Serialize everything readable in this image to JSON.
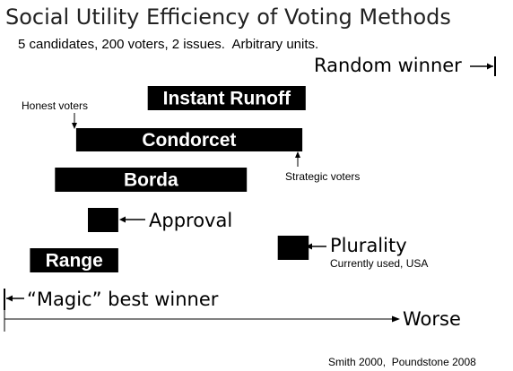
{
  "chart_data": {
    "type": "bar",
    "title": "Social Utility Efficiency of Voting Methods",
    "subtitle": "5 candidates, 200 voters, 2 issues.  Arbitrary units.",
    "xlim": [
      0,
      100
    ],
    "axis_end_label": "Worse",
    "reference_points": {
      "best": {
        "label": "“Magic” best winner",
        "value": 0
      },
      "random": {
        "label": "Random winner",
        "value": 100
      }
    },
    "series_labels": {
      "honest": "Honest voters",
      "strategic": "Strategic voters"
    },
    "categories": [
      "Instant Runoff",
      "Condorcet",
      "Borda",
      "Approval",
      "Plurality",
      "Range"
    ],
    "bars": [
      {
        "name": "Instant Runoff",
        "honest": 29.2,
        "strategic": 61.4
      },
      {
        "name": "Condorcet",
        "honest": 14.6,
        "strategic": 60.7
      },
      {
        "name": "Borda",
        "honest": 10.3,
        "strategic": 49.4
      },
      {
        "name": "Approval",
        "honest": 17.0,
        "strategic": 23.2
      },
      {
        "name": "Plurality",
        "honest": 55.7,
        "strategic": 62.0
      },
      {
        "name": "Range",
        "honest": 5.2,
        "strategic": 23.2
      }
    ],
    "notes": {
      "Plurality": "Currently used, USA"
    },
    "credit": "Smith 2000,  Poundstone 2008",
    "colors": {
      "bar": "#000000",
      "text_on_bar": "#ffffff"
    }
  }
}
